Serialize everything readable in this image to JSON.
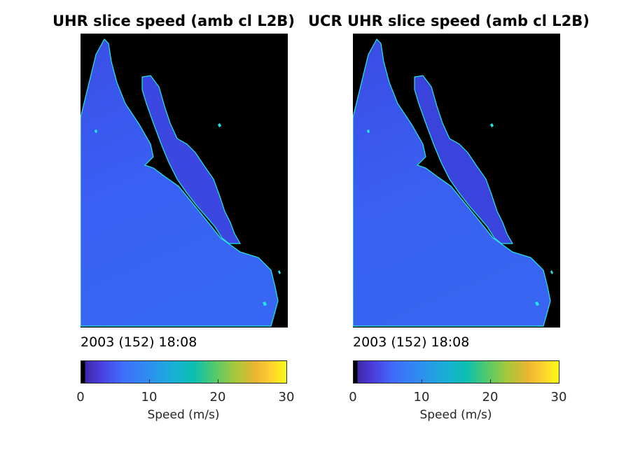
{
  "panels": [
    {
      "title": "UHR slice speed (amb cl L2B)",
      "timestamp": "2003 (152) 18:08",
      "colorbar": {
        "label": "Speed (m/s)",
        "ticks": [
          "0",
          "10",
          "20",
          "30"
        ],
        "range": [
          0,
          30
        ],
        "colormap": "parula"
      }
    },
    {
      "title": "UCR UHR slice speed (amb cl L2B)",
      "timestamp": "2003 (152) 18:08",
      "colorbar": {
        "label": "Speed (m/s)",
        "ticks": [
          "0",
          "10",
          "20",
          "30"
        ],
        "range": [
          0,
          30
        ],
        "colormap": "parula"
      }
    }
  ],
  "colors": {
    "land": "#000000",
    "ocean_low": "#3b4fe8",
    "ocean_mid": "#3a62f4",
    "coastline": "#23e8e8"
  }
}
